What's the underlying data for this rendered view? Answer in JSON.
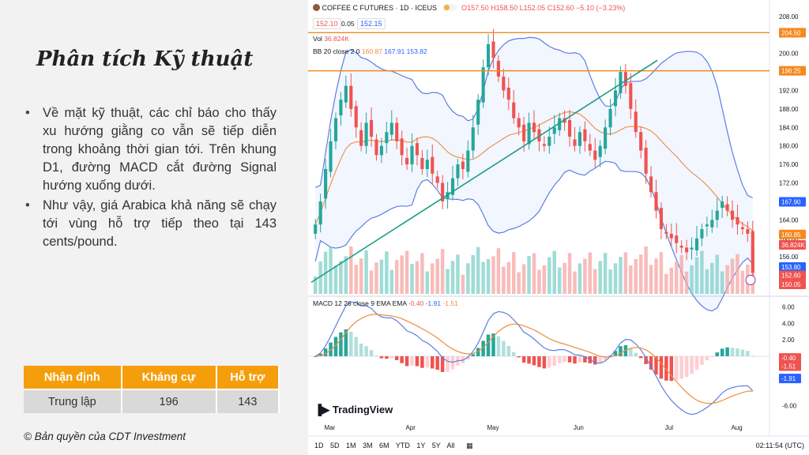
{
  "left": {
    "title": "Phân tích Kỹ thuật",
    "bullets": [
      "Về mặt kỹ thuật, các chỉ báo cho thấy xu hướng giằng co vẫn sẽ tiếp diễn trong khoảng thời gian tới. Trên khung D1, đường MACD cắt đường Signal hướng xuống dưới.",
      "Như vậy, giá Arabica khả năng sẽ chạy tới vùng hỗ trợ tiếp theo tại 143 cents/pound."
    ],
    "table": {
      "headers": [
        "Nhận định",
        "Kháng cự",
        "Hỗ trợ"
      ],
      "row": [
        "Trung lập",
        "196",
        "143"
      ]
    },
    "copyright": "© Bản quyền của CDT Investment"
  },
  "chart_header": {
    "symbol": "COFFEE C FUTURES · 1D · ICEUS",
    "ohlc": "O157.50 H158.50 L152.05 C152.60 −5.10 (−3.23%)",
    "price_left": "152.10",
    "spread": "0.05",
    "price_right": "152.15",
    "vol_label": "Vol",
    "vol_value": "36.824K",
    "bb_label": "BB 20 close 2 0",
    "bb_values": [
      "160.87",
      "167.91",
      "153.82"
    ],
    "macd_label": "MACD 12 26 close 9 EMA EMA",
    "macd_values": [
      "-0.40",
      "-1.91",
      "-1.51"
    ],
    "logo": "TradingView",
    "timeframes": "1D 5D 1M 3M 6M YTD 1Y 5Y All",
    "clock": "02:11:54 (UTC)"
  },
  "colors": {
    "accent": "#f59e0b",
    "up": "#26a69a",
    "down": "#ef5350",
    "bb": "#5b7fe0",
    "bb_mid": "#f08c3c",
    "level": "#f5891f",
    "trend": "#1b9c85"
  },
  "chart_data": [
    {
      "type": "candlestick",
      "title": "COFFEE C FUTURES · 1D · ICEUS",
      "x_ticks": [
        "Mar",
        "Apr",
        "May",
        "Jun",
        "Jul",
        "Aug"
      ],
      "y_ticks": [
        156,
        160,
        164,
        168,
        172,
        176,
        180,
        184,
        188,
        192,
        196,
        200,
        204,
        208
      ],
      "ylim": [
        148,
        209
      ],
      "levels": [
        204.5,
        196.25
      ],
      "price_labels": [
        "204.50",
        "196.25",
        "167.90",
        "160.85",
        "36.824K",
        "153.80",
        "152.60",
        "150.05"
      ],
      "close": [
        163,
        168,
        175,
        181,
        186,
        190,
        193,
        188,
        184,
        180,
        185,
        182,
        178,
        180,
        183,
        185,
        181,
        178,
        176,
        180,
        178,
        175,
        177,
        174,
        172,
        168,
        170,
        173,
        176,
        175,
        179,
        184,
        190,
        197,
        202,
        199,
        195,
        192,
        190,
        186,
        184,
        181,
        185,
        183,
        181,
        180,
        182,
        184,
        186,
        185,
        182,
        180,
        183,
        181,
        179,
        177,
        180,
        184,
        188,
        192,
        196,
        193,
        188,
        183,
        179,
        174,
        170,
        166,
        162,
        161,
        160,
        159,
        158,
        157,
        158,
        160,
        162,
        163,
        164,
        166,
        168,
        166,
        164,
        163,
        162,
        161,
        152.6
      ]
    },
    {
      "type": "line",
      "title": "MACD 12 26 close 9 EMA EMA",
      "y_ticks": [
        6,
        4,
        2,
        -6
      ],
      "ylim": [
        -7,
        7
      ],
      "price_labels": [
        "-0.40",
        "-1.51",
        "-1.91"
      ]
    }
  ]
}
